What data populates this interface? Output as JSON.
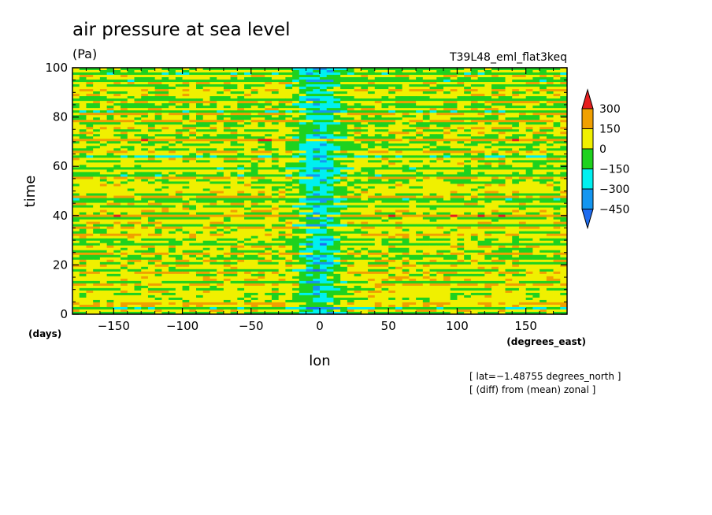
{
  "chart_data": {
    "type": "heatmap",
    "title": "air pressure at sea level",
    "units": "(Pa)",
    "experiment": "T39L48_eml_flat3keq",
    "xlabel": "lon",
    "xunits": "(degrees_east)",
    "ylabel": "time",
    "yunits": "(days)",
    "xlim": [
      -180,
      180
    ],
    "ylim": [
      0,
      100
    ],
    "xticks": [
      -150,
      -100,
      -50,
      0,
      50,
      100,
      150
    ],
    "yticks": [
      0,
      20,
      40,
      60,
      80,
      100
    ],
    "xtick_labels": [
      "−150",
      "−100",
      "−50",
      "0",
      "50",
      "100",
      "150"
    ],
    "ytick_labels": [
      "0",
      "20",
      "40",
      "60",
      "80",
      "100"
    ],
    "annotations": [
      "[ lat=−1.48755 degrees_north ]",
      "[ (diff) from (mean) zonal ]"
    ],
    "colorbar": {
      "levels": [
        -450,
        -300,
        -150,
        0,
        150,
        300
      ],
      "labels": [
        "−450",
        "−300",
        "−150",
        "0",
        "150",
        "300"
      ],
      "colors": [
        "#1e6cf0",
        "#1496f0",
        "#00f0f0",
        "#1ed21e",
        "#f0f000",
        "#f0a000",
        "#e61e1e"
      ],
      "extend": "both"
    },
    "field_description": {
      "background_band_values": [
        20,
        80,
        -20,
        120,
        40,
        -60,
        160,
        0
      ],
      "equatorial_anomaly": {
        "center_lon": 0,
        "width_deg": 30,
        "min_value": -320
      }
    }
  }
}
